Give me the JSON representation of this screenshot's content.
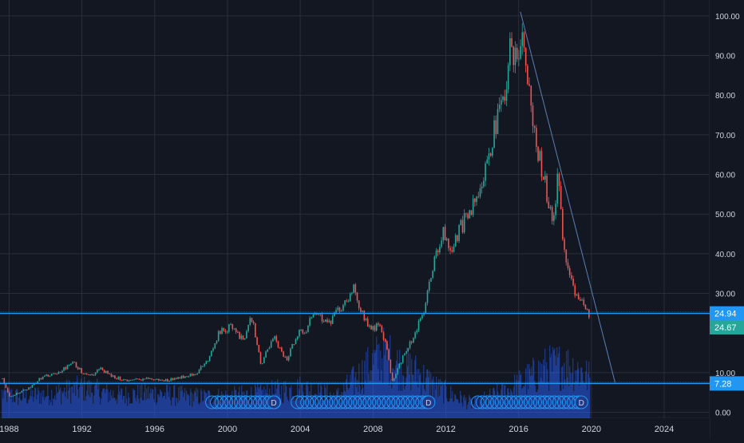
{
  "colors": {
    "background": "#131722",
    "grid": "#2a2e39",
    "up": "#26a69a",
    "down": "#ef5350",
    "volume": "#2962ff",
    "hline": "#2196f3",
    "trendline": "#5d7fb3",
    "axis_text": "#d1d4dc",
    "last_price_badge": "#26a69a"
  },
  "chart_data": {
    "type": "candlestick",
    "x_range": [
      1987.5,
      2026.5
    ],
    "ylim": [
      -1.5,
      104
    ],
    "x_ticks": [
      "1988",
      "1992",
      "1996",
      "2000",
      "2004",
      "2008",
      "2012",
      "2016",
      "2020",
      "2024"
    ],
    "y_ticks": [
      "0.00",
      "10.00",
      "30.00",
      "40.00",
      "50.00",
      "60.00",
      "70.00",
      "80.00",
      "90.00",
      "100.00"
    ],
    "price_path": [
      [
        1987.6,
        8.5
      ],
      [
        1988.0,
        4
      ],
      [
        1989.0,
        6
      ],
      [
        1989.8,
        9
      ],
      [
        1990.5,
        9.5
      ],
      [
        1991.5,
        12.5
      ],
      [
        1992.0,
        10
      ],
      [
        1992.5,
        9.5
      ],
      [
        1993.0,
        11
      ],
      [
        1993.6,
        9
      ],
      [
        1994.5,
        8
      ],
      [
        1995.5,
        8.5
      ],
      [
        1996.5,
        8
      ],
      [
        1997.5,
        9
      ],
      [
        1998.3,
        10
      ],
      [
        1999.0,
        14
      ],
      [
        1999.5,
        20
      ],
      [
        2000.3,
        22
      ],
      [
        2000.8,
        18
      ],
      [
        2001.3,
        24
      ],
      [
        2001.8,
        12
      ],
      [
        2002.5,
        19
      ],
      [
        2003.2,
        13
      ],
      [
        2003.8,
        20
      ],
      [
        2004.3,
        21
      ],
      [
        2004.8,
        26
      ],
      [
        2005.5,
        22
      ],
      [
        2006.3,
        27
      ],
      [
        2006.9,
        31
      ],
      [
        2007.3,
        26
      ],
      [
        2007.8,
        21
      ],
      [
        2008.3,
        22
      ],
      [
        2008.7,
        17
      ],
      [
        2009.0,
        7.5
      ],
      [
        2009.6,
        14
      ],
      [
        2010.3,
        20
      ],
      [
        2010.8,
        26
      ],
      [
        2011.3,
        38
      ],
      [
        2011.8,
        45
      ],
      [
        2012.3,
        41
      ],
      [
        2012.8,
        47
      ],
      [
        2013.3,
        50
      ],
      [
        2013.8,
        57
      ],
      [
        2014.3,
        65
      ],
      [
        2014.7,
        72
      ],
      [
        2015.2,
        80
      ],
      [
        2015.5,
        92
      ],
      [
        2015.8,
        88
      ],
      [
        2016.1,
        97
      ],
      [
        2016.4,
        88
      ],
      [
        2016.6,
        78
      ],
      [
        2016.9,
        68
      ],
      [
        2017.3,
        60
      ],
      [
        2017.7,
        52
      ],
      [
        2017.9,
        48
      ],
      [
        2018.1,
        60
      ],
      [
        2018.4,
        44
      ],
      [
        2018.6,
        38
      ],
      [
        2018.9,
        34
      ],
      [
        2019.1,
        30
      ],
      [
        2019.4,
        28
      ],
      [
        2019.7,
        25
      ],
      [
        2019.9,
        24.67
      ]
    ],
    "volume_profile": [
      [
        1987.6,
        0.35
      ],
      [
        1988.5,
        0.3
      ],
      [
        1990.5,
        0.35
      ],
      [
        1992.0,
        0.42
      ],
      [
        1994.0,
        0.32
      ],
      [
        1996.0,
        0.35
      ],
      [
        1998.0,
        0.3
      ],
      [
        2000.0,
        0.3
      ],
      [
        2002.0,
        0.35
      ],
      [
        2004.0,
        0.42
      ],
      [
        2006.0,
        0.3
      ],
      [
        2007.5,
        0.65
      ],
      [
        2008.5,
        0.9
      ],
      [
        2009.5,
        0.72
      ],
      [
        2010.5,
        0.62
      ],
      [
        2011.5,
        0.42
      ],
      [
        2012.5,
        0.3
      ],
      [
        2013.5,
        0.2
      ],
      [
        2014.5,
        0.3
      ],
      [
        2015.5,
        0.4
      ],
      [
        2016.5,
        0.55
      ],
      [
        2017.5,
        0.7
      ],
      [
        2018.5,
        0.75
      ],
      [
        2019.5,
        0.65
      ],
      [
        2019.9,
        0.55
      ]
    ],
    "horizontal_lines": [
      {
        "price": 24.94,
        "label": "24.94"
      },
      {
        "price": 7.28,
        "label": "7.28"
      }
    ],
    "last_price": {
      "value": 24.67,
      "label": "24.67"
    },
    "trendline": {
      "start": [
        2016.1,
        101
      ],
      "end": [
        2021.3,
        7.5
      ]
    },
    "dividend_markers": [
      {
        "label": "D",
        "range": [
          1998.8,
          2002.9
        ]
      },
      {
        "label": "D",
        "range": [
          2003.5,
          2011.4
        ]
      },
      {
        "label": "D",
        "range": [
          2013.4,
          2019.8
        ]
      }
    ]
  }
}
